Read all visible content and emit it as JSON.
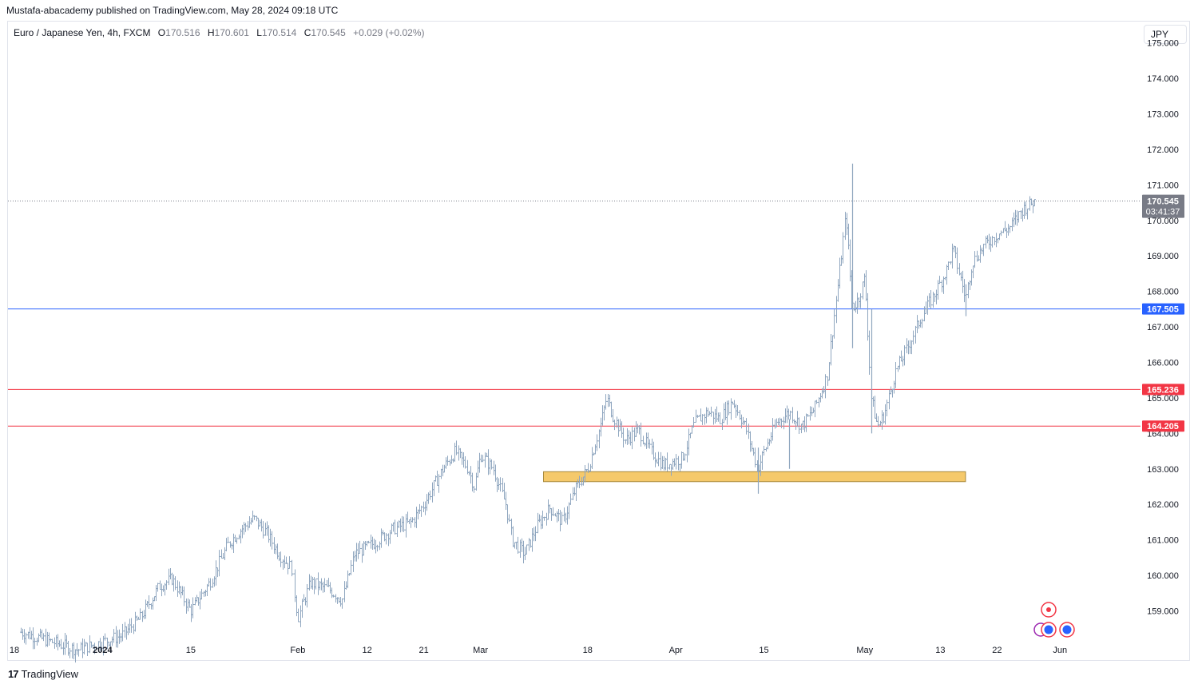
{
  "publish_line": "Mustafa-abacademy published on TradingView.com, May 28, 2024 09:18 UTC",
  "header": {
    "symbol": "Euro / Japanese Yen, 4h, FXCM",
    "open_label": "O",
    "open": "170.516",
    "high_label": "H",
    "high": "170.601",
    "low_label": "L",
    "low": "170.514",
    "close_label": "C",
    "close": "170.545",
    "change": "+0.029 (+0.02%)"
  },
  "currency": "JPY",
  "footer": {
    "brand": "TradingView",
    "logo_icon": "tradingview-logo-icon"
  },
  "colors": {
    "bar": "#8fa6bf",
    "support_blue": "#2962ff",
    "resistance_red": "#f23645",
    "zone_fill": "#f5c96b",
    "zone_border": "#a88a3e",
    "price_tag_bg": "#787b86"
  },
  "chart_data": {
    "type": "ohlc",
    "interval": "4h",
    "x_range": [
      "2023-12-18",
      "2024-06-03"
    ],
    "ylim": [
      158.2,
      175.6
    ],
    "grid": false,
    "y_ticks": [
      "159.000",
      "160.000",
      "161.000",
      "162.000",
      "163.000",
      "164.000",
      "165.000",
      "166.000",
      "167.000",
      "168.000",
      "169.000",
      "170.000",
      "171.000",
      "172.000",
      "173.000",
      "174.000",
      "175.000"
    ],
    "x_ticks": [
      {
        "date": "2023-12-18",
        "label": "18"
      },
      {
        "date": "2024-01-01",
        "label": "2024"
      },
      {
        "date": "2024-01-15",
        "label": "15"
      },
      {
        "date": "2024-02-01",
        "label": "Feb"
      },
      {
        "date": "2024-02-12",
        "label": "12"
      },
      {
        "date": "2024-02-21",
        "label": "21"
      },
      {
        "date": "2024-03-01",
        "label": "Mar"
      },
      {
        "date": "2024-03-18",
        "label": "18"
      },
      {
        "date": "2024-04-01",
        "label": "Apr"
      },
      {
        "date": "2024-04-15",
        "label": "15"
      },
      {
        "date": "2024-05-01",
        "label": "May"
      },
      {
        "date": "2024-05-13",
        "label": "13"
      },
      {
        "date": "2024-05-22",
        "label": "22"
      },
      {
        "date": "2024-06-01",
        "label": "Jun"
      }
    ],
    "price_path": [
      {
        "date": "2023-12-19",
        "price": 158.4
      },
      {
        "date": "2023-12-28",
        "price": 157.9
      },
      {
        "date": "2024-01-04",
        "price": 158.3
      },
      {
        "date": "2024-01-07",
        "price": 158.8
      },
      {
        "date": "2024-01-10",
        "price": 159.7
      },
      {
        "date": "2024-01-12",
        "price": 159.9
      },
      {
        "date": "2024-01-15",
        "price": 159.0
      },
      {
        "date": "2024-01-18",
        "price": 159.8
      },
      {
        "date": "2024-01-21",
        "price": 160.9
      },
      {
        "date": "2024-01-23",
        "price": 161.3
      },
      {
        "date": "2024-01-25",
        "price": 161.6
      },
      {
        "date": "2024-01-27",
        "price": 161.2
      },
      {
        "date": "2024-01-29",
        "price": 160.6
      },
      {
        "date": "2024-01-31",
        "price": 160.2
      },
      {
        "date": "2024-02-01",
        "price": 158.8
      },
      {
        "date": "2024-02-03",
        "price": 159.8
      },
      {
        "date": "2024-02-06",
        "price": 159.6
      },
      {
        "date": "2024-02-08",
        "price": 159.3
      },
      {
        "date": "2024-02-10",
        "price": 160.6
      },
      {
        "date": "2024-02-13",
        "price": 160.9
      },
      {
        "date": "2024-02-16",
        "price": 161.3
      },
      {
        "date": "2024-02-19",
        "price": 161.5
      },
      {
        "date": "2024-02-21",
        "price": 162.0
      },
      {
        "date": "2024-02-24",
        "price": 163.0
      },
      {
        "date": "2024-02-26",
        "price": 163.5
      },
      {
        "date": "2024-02-28",
        "price": 163.0
      },
      {
        "date": "2024-02-29",
        "price": 162.5
      },
      {
        "date": "2024-03-01",
        "price": 163.4
      },
      {
        "date": "2024-03-03",
        "price": 163.0
      },
      {
        "date": "2024-03-05",
        "price": 162.0
      },
      {
        "date": "2024-03-06",
        "price": 161.0
      },
      {
        "date": "2024-03-08",
        "price": 160.6
      },
      {
        "date": "2024-03-10",
        "price": 161.4
      },
      {
        "date": "2024-03-12",
        "price": 161.9
      },
      {
        "date": "2024-03-14",
        "price": 161.5
      },
      {
        "date": "2024-03-16",
        "price": 162.4
      },
      {
        "date": "2024-03-18",
        "price": 163.0
      },
      {
        "date": "2024-03-20",
        "price": 164.2
      },
      {
        "date": "2024-03-21",
        "price": 165.0
      },
      {
        "date": "2024-03-22",
        "price": 164.5
      },
      {
        "date": "2024-03-24",
        "price": 163.8
      },
      {
        "date": "2024-03-26",
        "price": 164.1
      },
      {
        "date": "2024-03-28",
        "price": 163.5
      },
      {
        "date": "2024-03-30",
        "price": 163.1
      },
      {
        "date": "2024-04-02",
        "price": 163.3
      },
      {
        "date": "2024-04-04",
        "price": 164.3
      },
      {
        "date": "2024-04-06",
        "price": 164.6
      },
      {
        "date": "2024-04-08",
        "price": 164.4
      },
      {
        "date": "2024-04-10",
        "price": 164.9
      },
      {
        "date": "2024-04-12",
        "price": 164.2
      },
      {
        "date": "2024-04-14",
        "price": 163.0
      },
      {
        "date": "2024-04-15",
        "price": 163.5
      },
      {
        "date": "2024-04-17",
        "price": 164.3
      },
      {
        "date": "2024-04-19",
        "price": 164.6
      },
      {
        "date": "2024-04-21",
        "price": 164.2
      },
      {
        "date": "2024-04-23",
        "price": 164.7
      },
      {
        "date": "2024-04-25",
        "price": 165.6
      },
      {
        "date": "2024-04-27",
        "price": 168.6
      },
      {
        "date": "2024-04-28",
        "price": 170.2
      },
      {
        "date": "2024-04-29",
        "price": 167.5
      },
      {
        "date": "2024-04-30",
        "price": 167.8
      },
      {
        "date": "2024-05-01",
        "price": 168.4
      },
      {
        "date": "2024-05-02",
        "price": 165.0
      },
      {
        "date": "2024-05-03",
        "price": 164.2
      },
      {
        "date": "2024-05-04",
        "price": 164.5
      },
      {
        "date": "2024-05-06",
        "price": 165.8
      },
      {
        "date": "2024-05-08",
        "price": 166.5
      },
      {
        "date": "2024-05-10",
        "price": 167.3
      },
      {
        "date": "2024-05-12",
        "price": 167.9
      },
      {
        "date": "2024-05-14",
        "price": 168.6
      },
      {
        "date": "2024-05-15",
        "price": 169.2
      },
      {
        "date": "2024-05-16",
        "price": 168.5
      },
      {
        "date": "2024-05-17",
        "price": 167.8
      },
      {
        "date": "2024-05-18",
        "price": 168.8
      },
      {
        "date": "2024-05-20",
        "price": 169.3
      },
      {
        "date": "2024-05-22",
        "price": 169.6
      },
      {
        "date": "2024-05-24",
        "price": 169.8
      },
      {
        "date": "2024-05-26",
        "price": 170.3
      },
      {
        "date": "2024-05-28",
        "price": 170.55
      }
    ],
    "spikes": [
      {
        "date": "2024-04-29",
        "high": 171.6,
        "low": 166.4
      },
      {
        "date": "2024-05-02",
        "high": 167.5,
        "low": 164.0
      },
      {
        "date": "2024-04-14",
        "high": 163.6,
        "low": 162.3
      },
      {
        "date": "2024-04-19",
        "high": 164.4,
        "low": 163.0
      },
      {
        "date": "2024-05-17",
        "high": 168.2,
        "low": 167.3
      }
    ],
    "horizontal_lines": [
      {
        "name": "support-blue",
        "price": 167.505,
        "label": "167.505",
        "color": "#2962ff"
      },
      {
        "name": "resistance-red-upper",
        "price": 165.236,
        "label": "165.236",
        "color": "#f23645"
      },
      {
        "name": "resistance-red-lower",
        "price": 164.205,
        "label": "164.205",
        "color": "#f23645"
      }
    ],
    "zone": {
      "start": "2024-03-11",
      "end": "2024-05-17",
      "top": 162.92,
      "bottom": 162.64
    },
    "last_price": {
      "price": 170.545,
      "label": "170.545",
      "countdown": "03:41:37"
    }
  }
}
